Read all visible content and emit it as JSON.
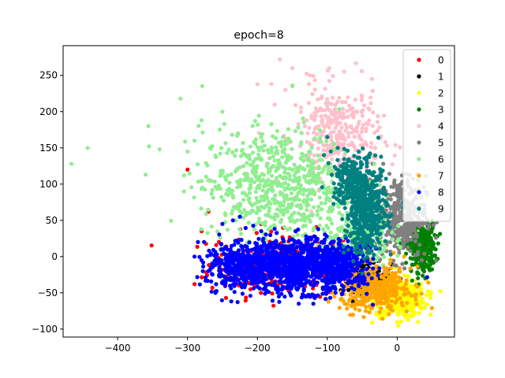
{
  "chart_data": {
    "type": "scatter",
    "title": "epoch=8",
    "xlabel": "",
    "ylabel": "",
    "xlim": [
      -478,
      82
    ],
    "ylim": [
      -111,
      291
    ],
    "xticks": [
      -400,
      -300,
      -200,
      -100,
      0
    ],
    "yticks": [
      -100,
      -50,
      0,
      50,
      100,
      150,
      200,
      250
    ],
    "xtick_labels": [
      "−400",
      "−300",
      "−200",
      "−100",
      "0"
    ],
    "ytick_labels": [
      "−100",
      "−50",
      "0",
      "50",
      "100",
      "150",
      "200",
      "250"
    ],
    "grid": false,
    "legend_position": "top-right",
    "series": [
      {
        "name": "0",
        "color": "#ff0000",
        "clusters": [
          {
            "cx": -160,
            "cy": -10,
            "sx": 55,
            "sy": 22,
            "n": 220
          }
        ],
        "points": [
          [
            -300,
            120
          ],
          [
            -290,
            -38
          ],
          [
            -260,
            -48
          ],
          [
            -270,
            62
          ],
          [
            -245,
            -57
          ],
          [
            -230,
            -30
          ],
          [
            -210,
            -45
          ],
          [
            -195,
            -50
          ],
          [
            -175,
            -10
          ],
          [
            -120,
            -35
          ],
          [
            -70,
            -28
          ],
          [
            -85,
            -15
          ],
          [
            -280,
            35
          ],
          [
            -255,
            20
          ],
          [
            -218,
            -35
          ],
          [
            -200,
            10
          ],
          [
            -188,
            -25
          ],
          [
            -150,
            15
          ],
          [
            -140,
            -40
          ],
          [
            -100,
            -45
          ],
          [
            -95,
            -12
          ],
          [
            -60,
            -5
          ]
        ]
      },
      {
        "name": "1",
        "color": "#000000",
        "clusters": [
          {
            "cx": -45,
            "cy": -28,
            "sx": 18,
            "sy": 10,
            "n": 120
          }
        ],
        "points": [
          [
            -60,
            -45
          ],
          [
            -30,
            -40
          ],
          [
            -70,
            -30
          ],
          [
            -20,
            -25
          ]
        ]
      },
      {
        "name": "2",
        "color": "#ffff00",
        "clusters": [
          {
            "cx": 5,
            "cy": -58,
            "sx": 18,
            "sy": 13,
            "n": 420
          }
        ],
        "points": [
          [
            -80,
            -60
          ],
          [
            -60,
            -70
          ],
          [
            30,
            -90
          ],
          [
            -30,
            -80
          ],
          [
            0,
            -90
          ],
          [
            20,
            -55
          ],
          [
            -10,
            -35
          ]
        ]
      },
      {
        "name": "3",
        "color": "#008000",
        "clusters": [
          {
            "cx": 35,
            "cy": 12,
            "sx": 10,
            "sy": 16,
            "n": 300
          }
        ],
        "points": [
          [
            50,
            50
          ],
          [
            45,
            30
          ],
          [
            20,
            -20
          ],
          [
            30,
            -15
          ],
          [
            55,
            10
          ],
          [
            15,
            25
          ]
        ]
      },
      {
        "name": "4",
        "color": "#ffc0cb",
        "clusters": [
          {
            "cx": -85,
            "cy": 165,
            "sx": 30,
            "sy": 35,
            "n": 360
          }
        ],
        "points": [
          [
            -168,
            272
          ],
          [
            -150,
            260
          ],
          [
            -125,
            250
          ],
          [
            -160,
            230
          ],
          [
            -200,
            238
          ],
          [
            -180,
            238
          ],
          [
            -150,
            235
          ],
          [
            -40,
            130
          ],
          [
            -20,
            95
          ]
        ]
      },
      {
        "name": "5",
        "color": "#808080",
        "clusters": [
          {
            "cx": 5,
            "cy": 55,
            "sx": 18,
            "sy": 28,
            "n": 380
          }
        ],
        "points": [
          [
            -35,
            128
          ],
          [
            -20,
            128
          ],
          [
            30,
            105
          ],
          [
            40,
            60
          ],
          [
            -10,
            20
          ]
        ]
      },
      {
        "name": "6",
        "color": "#90ee90",
        "clusters": [
          {
            "cx": -170,
            "cy": 100,
            "sx": 55,
            "sy": 38,
            "n": 700
          },
          {
            "cx": -60,
            "cy": 25,
            "sx": 25,
            "sy": 20,
            "n": 200
          }
        ],
        "points": [
          [
            -466,
            128
          ],
          [
            -443,
            150
          ],
          [
            -355,
            152
          ],
          [
            -360,
            113
          ],
          [
            -340,
            148
          ],
          [
            -310,
            218
          ],
          [
            -305,
            90
          ],
          [
            -300,
            145
          ],
          [
            -290,
            160
          ],
          [
            -280,
            188
          ],
          [
            -250,
            200
          ],
          [
            -270,
            105
          ]
        ]
      },
      {
        "name": "7",
        "color": "#ffa500",
        "clusters": [
          {
            "cx": -30,
            "cy": -45,
            "sx": 25,
            "sy": 15,
            "n": 400
          }
        ],
        "points": [
          [
            -90,
            -55
          ],
          [
            -75,
            -65
          ],
          [
            -60,
            -72
          ],
          [
            -45,
            -75
          ],
          [
            10,
            0
          ],
          [
            -5,
            5
          ]
        ]
      },
      {
        "name": "8",
        "color": "#0000ff",
        "clusters": [
          {
            "cx": -150,
            "cy": -12,
            "sx": 45,
            "sy": 18,
            "n": 1100
          },
          {
            "cx": -230,
            "cy": -12,
            "sx": 22,
            "sy": 15,
            "n": 250
          },
          {
            "cx": -80,
            "cy": -15,
            "sx": 20,
            "sy": 15,
            "n": 250
          }
        ],
        "points": [
          [
            -285,
            20
          ],
          [
            -290,
            0
          ],
          [
            -280,
            -5
          ],
          [
            -270,
            -20
          ],
          [
            -260,
            -50
          ],
          [
            -250,
            45
          ],
          [
            -235,
            50
          ],
          [
            -225,
            55
          ],
          [
            -120,
            -65
          ],
          [
            -75,
            5
          ]
        ]
      },
      {
        "name": "9",
        "color": "#008080",
        "clusters": [
          {
            "cx": -45,
            "cy": 65,
            "sx": 15,
            "sy": 30,
            "n": 520
          },
          {
            "cx": -70,
            "cy": 110,
            "sx": 12,
            "sy": 15,
            "n": 120
          }
        ],
        "points": [
          [
            -100,
            165
          ],
          [
            -95,
            145
          ],
          [
            -85,
            150
          ],
          [
            -105,
            140
          ],
          [
            -20,
            40
          ],
          [
            -60,
            20
          ]
        ]
      }
    ]
  }
}
